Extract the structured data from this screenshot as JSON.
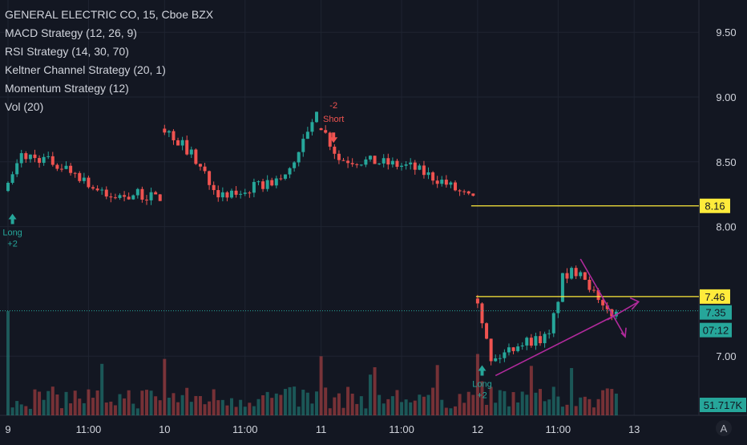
{
  "chart_data": {
    "type": "candlestick",
    "symbol_title": "GENERAL ELECTRIC CO, 15, Cboe BZX",
    "indicators": [
      "MACD Strategy (12, 26, 9)",
      "RSI Strategy (14, 30, 70)",
      "Keltner Channel Strategy (20, 1)",
      "Momentum Strategy (12)",
      "Vol (20)"
    ],
    "y_ticks": [
      "9.50",
      "9.00",
      "8.50",
      "8.00",
      "7.00"
    ],
    "x_ticks": [
      {
        "label": "9",
        "bar": 0
      },
      {
        "label": "11:00",
        "bar": 18
      },
      {
        "label": "10",
        "bar": 35
      },
      {
        "label": "11:00",
        "bar": 53
      },
      {
        "label": "11",
        "bar": 70
      },
      {
        "label": "11:00",
        "bar": 88
      },
      {
        "label": "12",
        "bar": 105
      },
      {
        "label": "11:00",
        "bar": 123
      },
      {
        "label": "13",
        "bar": 140
      }
    ],
    "price_labels": {
      "last_close": "8.16",
      "today_open": "7.46",
      "current": "7.35",
      "countdown": "07:12",
      "volume": "51.717K"
    },
    "signals": [
      {
        "bar": 1,
        "lines": [
          "Long",
          "+2"
        ],
        "color": "#26a69a"
      },
      {
        "bar": 71,
        "lines": [
          "-2",
          "Short"
        ],
        "color": "#ef5350"
      },
      {
        "bar": 106,
        "lines": [
          "Long",
          "+2"
        ],
        "color": "#26a69a"
      }
    ],
    "corner_label": "A",
    "colors": {
      "up": "#26a69a",
      "down": "#ef5350",
      "horizontal": "#ffeb3b",
      "trend": "#b02a9b",
      "grid": "#1f2431",
      "axis_text": "#d1d4dc"
    }
  }
}
